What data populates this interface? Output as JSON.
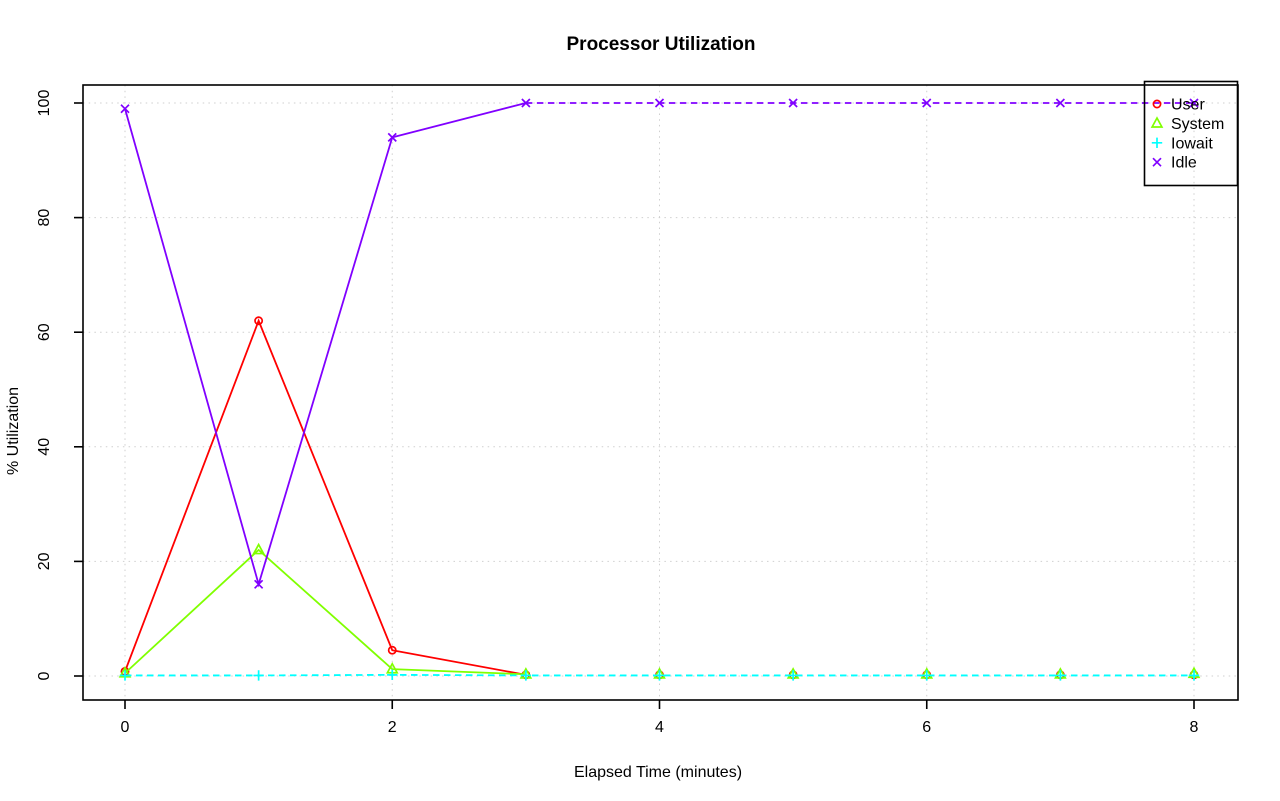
{
  "chart_data": {
    "type": "line",
    "title": "Processor Utilization",
    "xlabel": "Elapsed Time (minutes)",
    "ylabel": "% Utilization",
    "x": [
      0,
      1,
      2,
      3,
      4,
      5,
      6,
      7,
      8
    ],
    "xlim": [
      0,
      8
    ],
    "ylim": [
      0,
      100
    ],
    "x_ticks": [
      0,
      2,
      4,
      6,
      8
    ],
    "y_ticks": [
      0,
      20,
      40,
      60,
      80,
      100
    ],
    "grid": "dotted both axes, light gray",
    "legend_position": "top-right",
    "background": "#ffffff",
    "series": [
      {
        "name": "User",
        "color": "#FF0000",
        "marker": "circle",
        "values": [
          0.8,
          62,
          4.5,
          0.2,
          0.2,
          0.2,
          0.2,
          0.2,
          0.2
        ],
        "segments": [
          {
            "from": 0,
            "to": 3,
            "style": "solid"
          }
        ]
      },
      {
        "name": "System",
        "color": "#80FF00",
        "marker": "triangle",
        "values": [
          0.5,
          22,
          1.2,
          0.3,
          0.3,
          0.3,
          0.3,
          0.3,
          0.4
        ],
        "segments": [
          {
            "from": 0,
            "to": 3,
            "style": "solid"
          }
        ]
      },
      {
        "name": "Iowait",
        "color": "#00FFFF",
        "marker": "plus",
        "values": [
          0.1,
          0.1,
          0.2,
          0.1,
          0.1,
          0.1,
          0.1,
          0.1,
          0.1
        ],
        "segments": [
          {
            "from": 0,
            "to": 8,
            "style": "dashed"
          }
        ]
      },
      {
        "name": "Idle",
        "color": "#8000FF",
        "marker": "x",
        "values": [
          99,
          16,
          94,
          100,
          100,
          100,
          100,
          100,
          100
        ],
        "segments": [
          {
            "from": 0,
            "to": 3,
            "style": "solid"
          },
          {
            "from": 3,
            "to": 8,
            "style": "dashed"
          }
        ]
      }
    ],
    "legend": {
      "entries": [
        "User",
        "System",
        "Iowait",
        "Idle"
      ],
      "border": "#000000"
    }
  }
}
